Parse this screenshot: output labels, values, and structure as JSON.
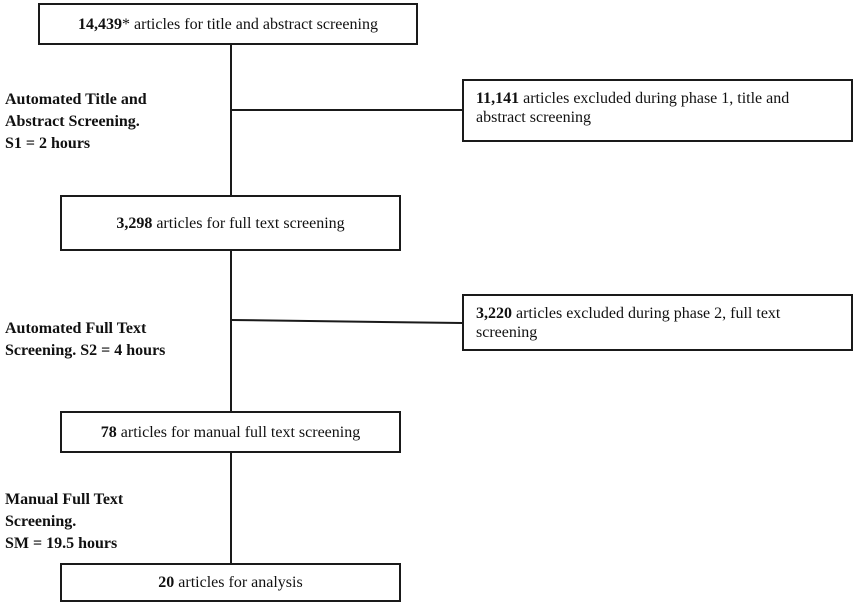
{
  "boxes": {
    "initial": {
      "count": "14,439",
      "mark": "*",
      "text": " articles for title and abstract screening"
    },
    "excluded1": {
      "count": "11,141",
      "text": " articles excluded during phase 1, title and abstract screening"
    },
    "fulltext": {
      "count": "3,298",
      "text": " articles for full text screening"
    },
    "excluded2": {
      "count": "3,220",
      "text": " articles excluded during phase 2, full text screening"
    },
    "manual": {
      "count": "78",
      "text": " articles for manual full text screening"
    },
    "final": {
      "count": "20",
      "text": " articles for analysis"
    }
  },
  "stages": {
    "s1": {
      "line1": "Automated Title and",
      "line2": "Abstract Screening.",
      "line3": "S1 = 2 hours"
    },
    "s2": {
      "line1": "Automated Full Text",
      "line2": "Screening. S2 = 4 hours"
    },
    "sm": {
      "line1": "Manual Full Text",
      "line2": "Screening.",
      "line3": "SM = 19.5 hours"
    }
  }
}
